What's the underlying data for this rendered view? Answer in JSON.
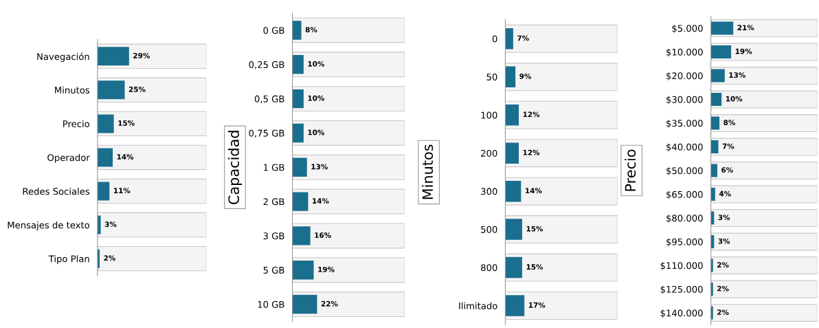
{
  "chart_data": [
    {
      "type": "bar",
      "orientation": "horizontal",
      "categories": [
        "Navegación",
        "Minutos",
        "Precio",
        "Operador",
        "Redes Sociales",
        "Mensajes de texto",
        "Tipo Plan"
      ],
      "series": [
        {
          "color": "#f4f4f4",
          "values": [
            100,
            100,
            100,
            100,
            100,
            100,
            100
          ]
        },
        {
          "color": "#1a6e8e",
          "values": [
            29,
            25,
            15,
            14,
            11,
            3,
            2
          ],
          "value_labels": [
            "29%",
            "25%",
            "15%",
            "14%",
            "11%",
            "3%",
            "2%"
          ]
        }
      ],
      "xlim": [
        0,
        100
      ],
      "tick_labels": "y"
    },
    {
      "type": "bar",
      "orientation": "horizontal",
      "ylabel": "Capacidad",
      "categories": [
        "0 GB",
        "0,25 GB",
        "0,5 GB",
        "0,75 GB",
        "1 GB",
        "2 GB",
        "3 GB",
        "5 GB",
        "10 GB"
      ],
      "series": [
        {
          "color": "#f4f4f4",
          "values": [
            100,
            100,
            100,
            100,
            100,
            100,
            100,
            100,
            100
          ]
        },
        {
          "color": "#1a6e8e",
          "values": [
            8,
            10,
            10,
            10,
            13,
            14,
            16,
            19,
            22
          ],
          "value_labels": [
            "8%",
            "10%",
            "10%",
            "10%",
            "13%",
            "14%",
            "16%",
            "19%",
            "22%"
          ]
        }
      ],
      "xlim": [
        0,
        100
      ],
      "tick_labels": "y"
    },
    {
      "type": "bar",
      "orientation": "horizontal",
      "ylabel": "Minutos",
      "categories": [
        "0",
        "50",
        "100",
        "200",
        "300",
        "500",
        "800",
        "Ilimitado"
      ],
      "series": [
        {
          "color": "#f4f4f4",
          "values": [
            100,
            100,
            100,
            100,
            100,
            100,
            100,
            100
          ]
        },
        {
          "color": "#1a6e8e",
          "values": [
            7,
            9,
            12,
            12,
            14,
            15,
            15,
            17
          ],
          "value_labels": [
            "7%",
            "9%",
            "12%",
            "12%",
            "14%",
            "15%",
            "15%",
            "17%"
          ]
        }
      ],
      "xlim": [
        0,
        100
      ],
      "tick_labels": "y"
    },
    {
      "type": "bar",
      "orientation": "horizontal",
      "ylabel": "Precio",
      "categories": [
        "$5.000",
        "$10.000",
        "$20.000",
        "$30.000",
        "$35.000",
        "$40.000",
        "$50.000",
        "$65.000",
        "$80.000",
        "$95.000",
        "$110.000",
        "$125.000",
        "$140.000"
      ],
      "series": [
        {
          "color": "#f4f4f4",
          "values": [
            100,
            100,
            100,
            100,
            100,
            100,
            100,
            100,
            100,
            100,
            100,
            100,
            100
          ]
        },
        {
          "color": "#1a6e8e",
          "values": [
            21,
            19,
            13,
            10,
            8,
            7,
            6,
            4,
            3,
            3,
            2,
            2,
            2
          ],
          "value_labels": [
            "21%",
            "19%",
            "13%",
            "10%",
            "8%",
            "7%",
            "6%",
            "4%",
            "3%",
            "3%",
            "2%",
            "2%",
            "2%"
          ]
        }
      ],
      "xlim": [
        0,
        100
      ],
      "tick_labels": "y"
    }
  ]
}
